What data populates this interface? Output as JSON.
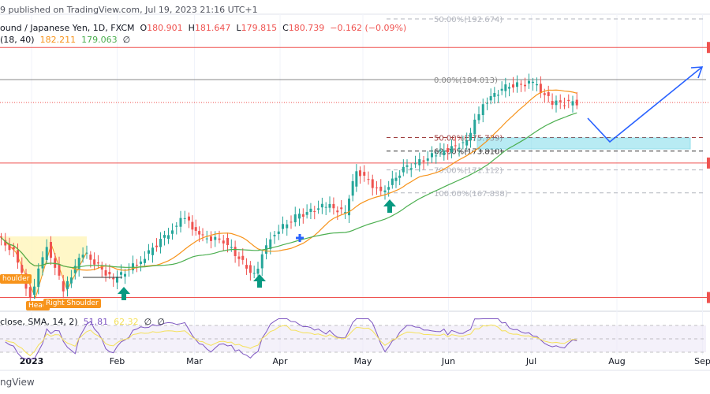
{
  "header": {
    "published": "9 published on TradingView.com, Jul 19, 2023 21:16 UTC+1",
    "symbol": "ound / Japanese Yen, 1D, FXCM",
    "o_label": "O",
    "o": "180.901",
    "h_label": "H",
    "h": "181.647",
    "l_label": "L",
    "l": "179.815",
    "c_label": "C",
    "c": "180.739",
    "change": "−0.162 (−0.09%)",
    "ma_params": "(18, 40)",
    "ma_fast": "182.211",
    "ma_slow": "179.063",
    "ma_extra": "∅"
  },
  "rsi": {
    "title": "close, SMA, 14, 2)",
    "value": "51.81",
    "ma_value": "62.32",
    "extra1": "∅",
    "extra2": "∅"
  },
  "footer": {
    "brand": "ngView"
  },
  "annotations": {
    "left_shoulder": "houlder",
    "head": "Head",
    "right_shoulder": "Right Shoulder"
  },
  "colors": {
    "up": "#26a69a",
    "down": "#ef5350",
    "ma_fast": "#f7931a",
    "ma_slow": "#4caf50",
    "rsi": "#7e57c2",
    "rsi_ma": "#f5e15a",
    "zone": "#7fdcea",
    "path": "#2962ff"
  },
  "chart_data": {
    "type": "candlestick",
    "symbol": "GBPJPY",
    "interval": "1D",
    "x_ticks": [
      "2023",
      "Feb",
      "Mar",
      "Apr",
      "May",
      "Jun",
      "Jul",
      "Aug",
      "Sep"
    ],
    "price_path": [
      [
        "2022-12-21",
        161.6
      ],
      [
        "2022-12-27",
        159.4
      ],
      [
        "2023-01-02",
        152.9
      ],
      [
        "2023-01-08",
        160.5
      ],
      [
        "2023-01-14",
        154.0
      ],
      [
        "2023-01-21",
        159.4
      ],
      [
        "2023-02-01",
        155.4
      ],
      [
        "2023-02-11",
        158.2
      ],
      [
        "2023-02-21",
        162.2
      ],
      [
        "2023-02-27",
        164.4
      ],
      [
        "2023-03-04",
        161.6
      ],
      [
        "2023-03-13",
        161.0
      ],
      [
        "2023-03-24",
        156.0
      ],
      [
        "2023-03-30",
        161.6
      ],
      [
        "2023-04-08",
        164.4
      ],
      [
        "2023-04-19",
        166.1
      ],
      [
        "2023-04-26",
        165.0
      ],
      [
        "2023-04-30",
        171.2
      ],
      [
        "2023-05-09",
        167.8
      ],
      [
        "2023-05-17",
        171.2
      ],
      [
        "2023-05-29",
        173.4
      ],
      [
        "2023-06-09",
        175.1
      ],
      [
        "2023-06-15",
        180.7
      ],
      [
        "2023-06-23",
        183.0
      ],
      [
        "2023-07-03",
        183.6
      ],
      [
        "2023-07-10",
        180.7
      ],
      [
        "2023-07-19",
        180.739
      ]
    ],
    "fib_levels": [
      {
        "label": "50.00%(192.674)",
        "price": 192.674
      },
      {
        "label": "0.00%(184.013)",
        "price": 184.013
      },
      {
        "label": "50.00%(175.739)",
        "price": 175.739
      },
      {
        "label": "62.00%(173.810)",
        "price": 173.81
      },
      {
        "label": "79.00%(171.112)",
        "price": 171.112
      },
      {
        "label": "100.00%(167.838)",
        "price": 167.838
      }
    ],
    "horizontal_levels": [
      188.6,
      172.1,
      152.9
    ],
    "current_price": 180.739,
    "rsi_levels": [
      70,
      50,
      30
    ]
  }
}
